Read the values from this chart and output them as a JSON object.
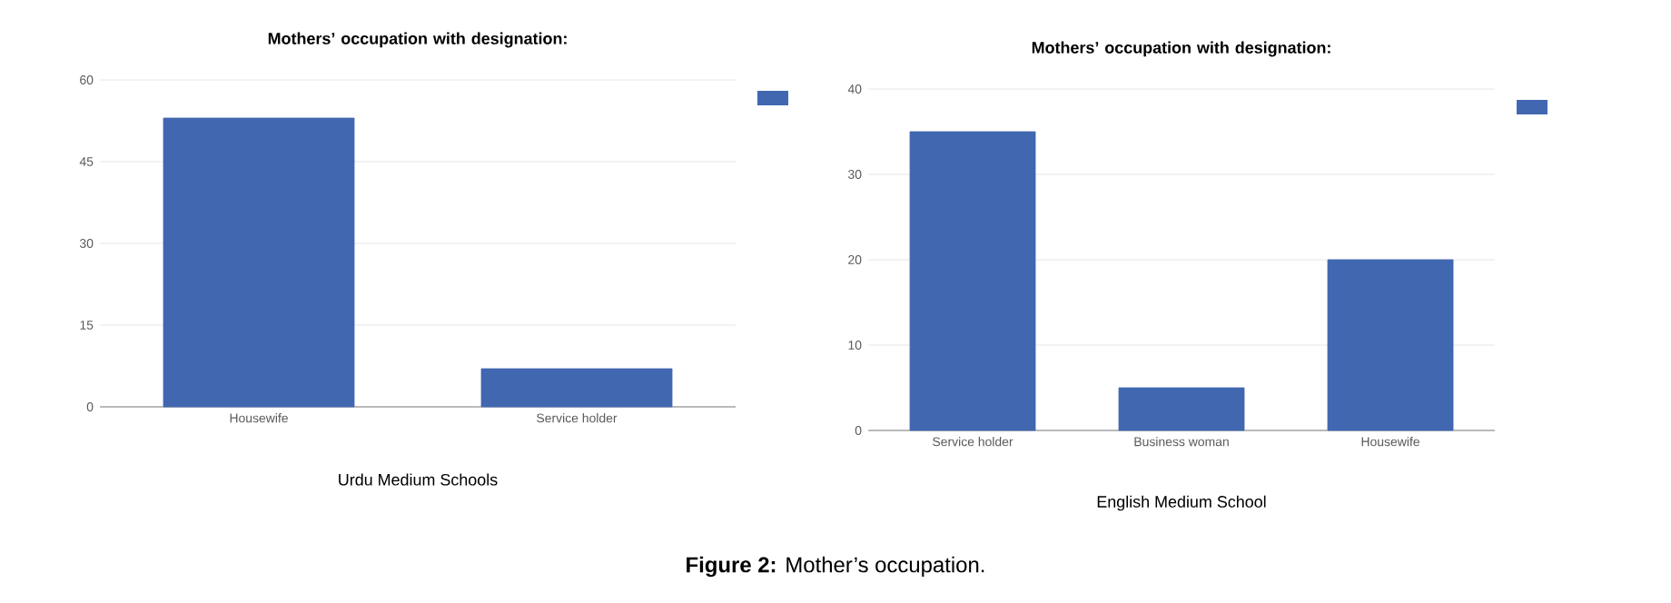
{
  "chart_data": [
    {
      "type": "bar",
      "title": "Mothers’ occupation with designation:",
      "xlabel": "Urdu Medium Schools",
      "categories": [
        "Housewife",
        "Service holder"
      ],
      "values": [
        53,
        7
      ],
      "color": "#4167b1",
      "ylim": [
        0,
        60
      ],
      "yticks": [
        0,
        15,
        30,
        45,
        60
      ],
      "grid": "y",
      "annotations": [
        "**Figure 2:** Mother’s occupation."
      ]
    },
    {
      "type": "bar",
      "title": "Mothers’ occupation with designation:",
      "xlabel": "English Medium  School",
      "categories": [
        "Service holder",
        "Business woman",
        "Housewife"
      ],
      "values": [
        35,
        5,
        20
      ],
      "color": "#4167b1",
      "ylim": [
        0,
        40
      ],
      "yticks": [
        0,
        10,
        20,
        30,
        40
      ],
      "grid": "y"
    }
  ]
}
